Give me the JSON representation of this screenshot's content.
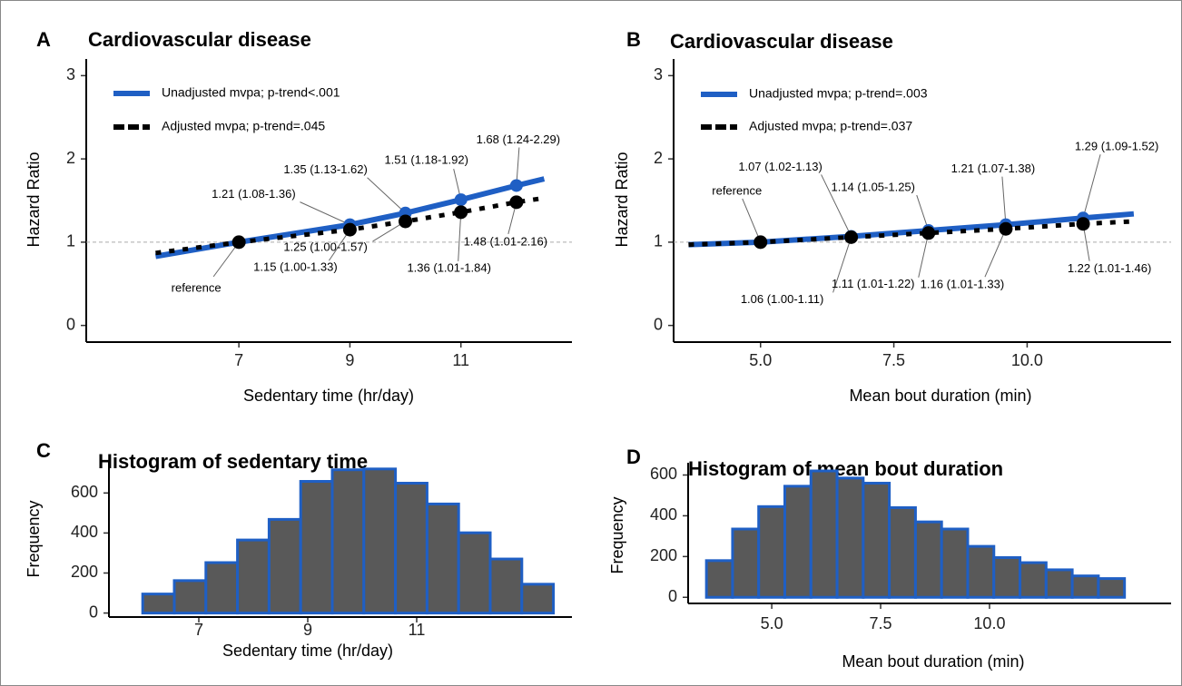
{
  "chart_data": [
    {
      "type": "line",
      "panel": "A",
      "title": "Cardiovascular disease",
      "x_label": "Sedentary time (hr/day)",
      "y_label": "Hazard Ratio",
      "xlim": [
        4.25,
        13
      ],
      "xticks": [
        7,
        9,
        11
      ],
      "ylim": [
        -0.2,
        3.2
      ],
      "yticks": [
        0,
        1,
        2,
        3
      ],
      "reference_line": 1,
      "legend": "top-left",
      "series": [
        {
          "name": "Unadjusted mvpa; p-trend<.001",
          "color": "#1f5fc4",
          "style": "solid",
          "x": [
            5.5,
            7,
            9,
            10,
            11,
            12,
            12.5
          ],
          "values": [
            0.83,
            1,
            1.21,
            1.35,
            1.51,
            1.68,
            1.76
          ],
          "points": {
            "x": [
              9,
              10,
              11,
              12
            ],
            "values": [
              1.21,
              1.35,
              1.51,
              1.68
            ],
            "value_labels": [
              "1.21 (1.08-1.36)",
              "1.35 (1.13-1.62)",
              "1.51 (1.18-1.92)",
              "1.68 (1.24-2.29)"
            ]
          }
        },
        {
          "name": "Adjusted mvpa; p-trend=.045",
          "color": "#000000",
          "style": "dotted",
          "x": [
            5.5,
            7,
            9,
            10,
            11,
            12,
            12.5
          ],
          "values": [
            0.87,
            1,
            1.15,
            1.25,
            1.36,
            1.48,
            1.53
          ],
          "points": {
            "x": [
              7,
              9,
              10,
              11,
              12
            ],
            "values": [
              1,
              1.15,
              1.25,
              1.36,
              1.48
            ],
            "value_labels": [
              "reference",
              "1.15 (1.00-1.33)",
              "1.25 (1.00-1.57)",
              "1.36 (1.01-1.84)",
              "1.48 (1.01-2.16)"
            ]
          }
        }
      ]
    },
    {
      "type": "line",
      "panel": "B",
      "title": "Cardiovascular disease",
      "x_label": "Mean bout duration (min)",
      "y_label": "Hazard Ratio",
      "xlim": [
        3.37,
        12.7
      ],
      "xticks": [
        {
          "value": 5,
          "label": "5.0"
        },
        7.5,
        {
          "value": 10,
          "label": "10.0"
        }
      ],
      "ylim": [
        -0.2,
        3.2
      ],
      "yticks": [
        0,
        1,
        2,
        3
      ],
      "reference_line": 1,
      "legend": "top-left",
      "series": [
        {
          "name": "Unadjusted mvpa; p-trend=.003",
          "color": "#1f5fc4",
          "style": "solid",
          "x": [
            3.65,
            5,
            6.7,
            8.15,
            9.6,
            11.05,
            12
          ],
          "values": [
            0.97,
            1,
            1.07,
            1.14,
            1.21,
            1.29,
            1.34
          ],
          "points": {
            "x": [
              5,
              6.7,
              8.15,
              9.6,
              11.05
            ],
            "values": [
              1,
              1.07,
              1.14,
              1.21,
              1.29
            ],
            "value_labels": [
              "reference",
              "1.07 (1.02-1.13)",
              "1.14 (1.05-1.25)",
              "1.21 (1.07-1.38)",
              "1.29 (1.09-1.52)"
            ]
          }
        },
        {
          "name": "Adjusted mvpa; p-trend=.037",
          "color": "#000000",
          "style": "dotted",
          "x": [
            3.65,
            5,
            6.7,
            8.15,
            9.6,
            11.05,
            12
          ],
          "values": [
            0.97,
            1,
            1.06,
            1.11,
            1.16,
            1.22,
            1.25
          ],
          "points": {
            "x": [
              5,
              6.7,
              8.15,
              9.6,
              11.05
            ],
            "values": [
              1,
              1.06,
              1.11,
              1.16,
              1.22
            ],
            "value_labels": [
              null,
              "1.06 (1.00-1.11)",
              "1.11 (1.01-1.22)",
              "1.16 (1.01-1.33)",
              "1.22 (1.01-1.46)"
            ]
          }
        }
      ]
    },
    {
      "type": "histogram",
      "panel": "C",
      "title": "Histogram of sedentary time",
      "x_label": "Sedentary time (hr/day)",
      "y_label": "Frequency",
      "xlim": [
        5.35,
        13.85
      ],
      "xticks": [
        7,
        9,
        11
      ],
      "ylim": [
        -20,
        760
      ],
      "yticks": [
        0,
        200,
        400,
        600
      ],
      "color": "#1f5fc4",
      "fill": "#595959",
      "bins": [
        5.97,
        6.55,
        7.13,
        7.71,
        8.29,
        8.87,
        9.45,
        10.03,
        10.61,
        11.19,
        11.77,
        12.35,
        12.93,
        13.51
      ],
      "values": [
        95,
        162,
        252,
        365,
        468,
        658,
        716,
        720,
        649,
        545,
        401,
        270,
        144
      ]
    },
    {
      "type": "histogram",
      "panel": "D",
      "title": "Histogram of mean bout duration",
      "x_label": "Mean bout duration (min)",
      "y_label": "Frequency",
      "xlim": [
        3.08,
        14.17
      ],
      "xticks": [
        {
          "value": 5,
          "label": "5.0"
        },
        7.5,
        {
          "value": 10,
          "label": "10.0"
        }
      ],
      "ylim": [
        -30,
        660
      ],
      "yticks": [
        0,
        200,
        400,
        600
      ],
      "color": "#1f5fc4",
      "fill": "#595959",
      "bins": [
        3.5,
        4.1,
        4.7,
        5.3,
        5.9,
        6.5,
        7.1,
        7.7,
        8.3,
        8.9,
        9.5,
        10.1,
        10.7,
        11.3,
        11.9,
        12.5,
        13.1
      ],
      "values": [
        180,
        335,
        445,
        545,
        620,
        585,
        560,
        440,
        370,
        335,
        250,
        195,
        170,
        135,
        105,
        92
      ]
    }
  ]
}
